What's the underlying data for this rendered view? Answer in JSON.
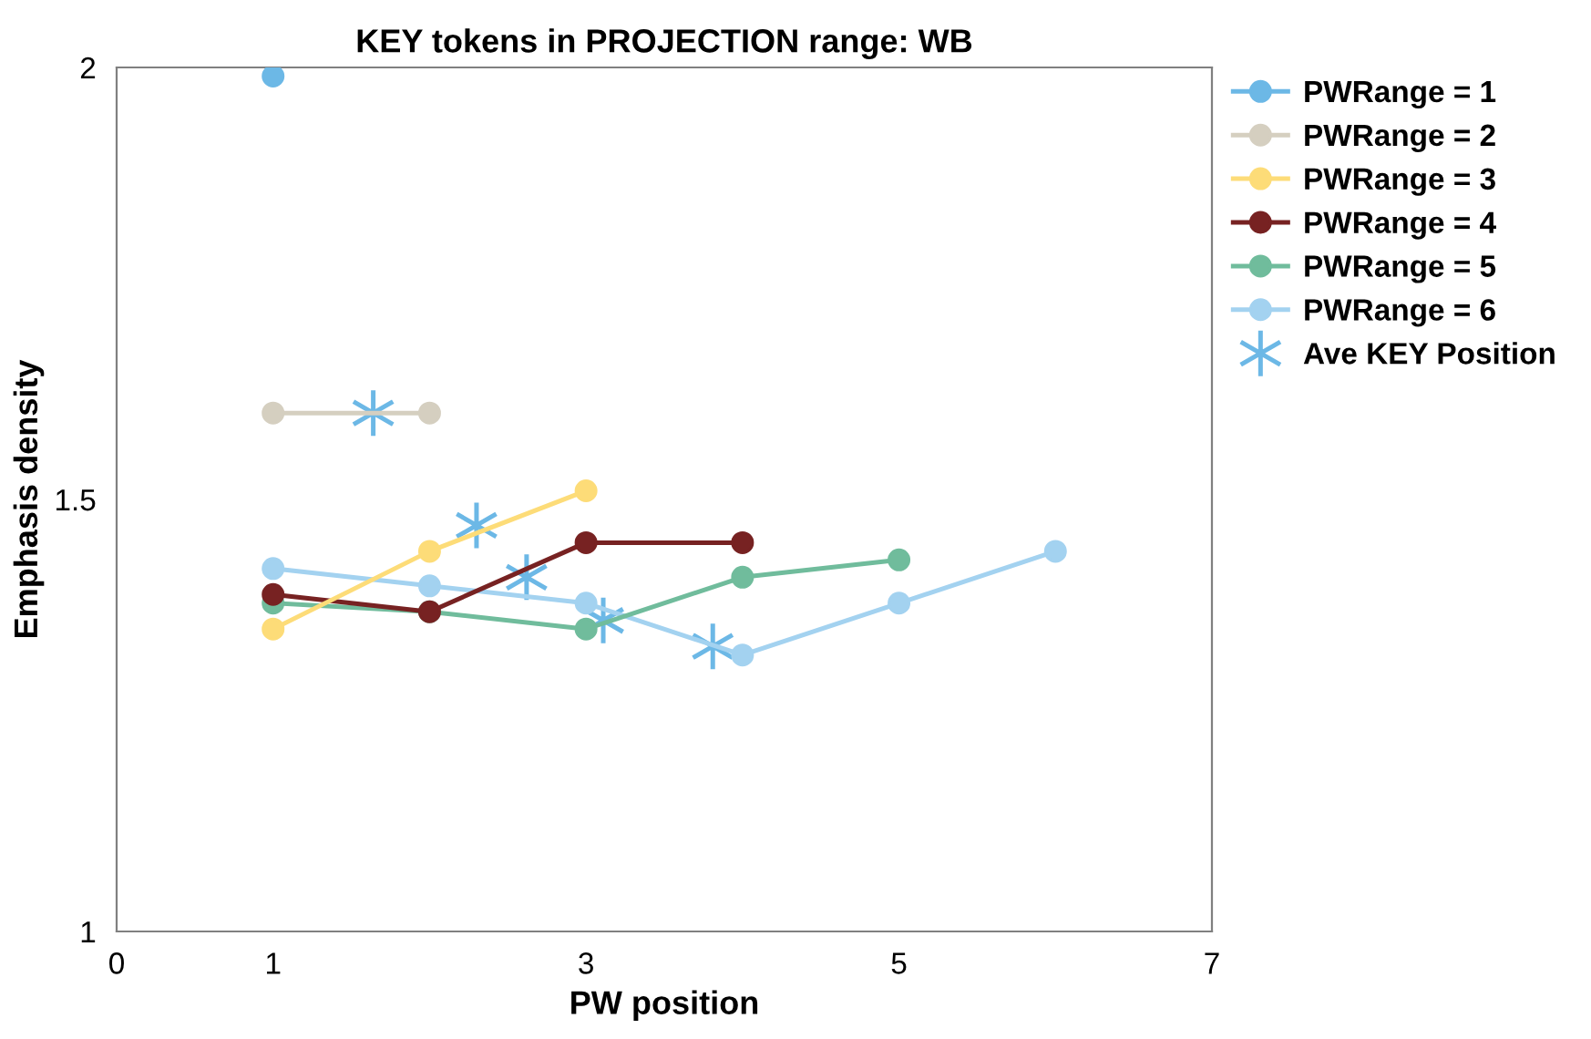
{
  "chart_data": {
    "type": "line",
    "title": "KEY tokens in PROJECTION range: WB",
    "xlabel": "PW position",
    "ylabel": "Emphasis density",
    "xlim": [
      0,
      7
    ],
    "xticks": [
      0,
      1,
      3,
      5,
      7
    ],
    "ylim": [
      1,
      2
    ],
    "yticks": [
      1,
      1.5,
      2
    ],
    "grid": false,
    "legend": "right",
    "marker": "circle",
    "line_style": "solid",
    "series": [
      {
        "name": "PWRange = 1",
        "color": "#6cb8e6",
        "x": [
          1
        ],
        "values": [
          1.99
        ]
      },
      {
        "name": "PWRange = 2",
        "color": "#d5cfc0",
        "x": [
          1,
          2
        ],
        "values": [
          1.6,
          1.6
        ]
      },
      {
        "name": "PWRange = 3",
        "color": "#fddc78",
        "x": [
          1,
          2,
          3
        ],
        "values": [
          1.35,
          1.44,
          1.51
        ]
      },
      {
        "name": "PWRange = 4",
        "color": "#772222",
        "x": [
          1,
          2,
          3,
          4
        ],
        "values": [
          1.39,
          1.37,
          1.45,
          1.45
        ]
      },
      {
        "name": "PWRange = 5",
        "color": "#70bc9c",
        "x": [
          1,
          2,
          3,
          4,
          5
        ],
        "values": [
          1.38,
          1.37,
          1.35,
          1.41,
          1.43
        ]
      },
      {
        "name": "PWRange = 6",
        "color": "#a3d2f0",
        "x": [
          1,
          2,
          3,
          4,
          5,
          6
        ],
        "values": [
          1.42,
          1.4,
          1.38,
          1.32,
          1.38,
          1.44
        ]
      },
      {
        "name": "Ave KEY Position",
        "type": "scatter",
        "marker": "cross",
        "color": "#6cb8e6",
        "x": [
          1.64,
          2.3,
          2.62,
          3.11,
          3.81
        ],
        "values": [
          1.6,
          1.47,
          1.41,
          1.36,
          1.33
        ]
      }
    ]
  }
}
